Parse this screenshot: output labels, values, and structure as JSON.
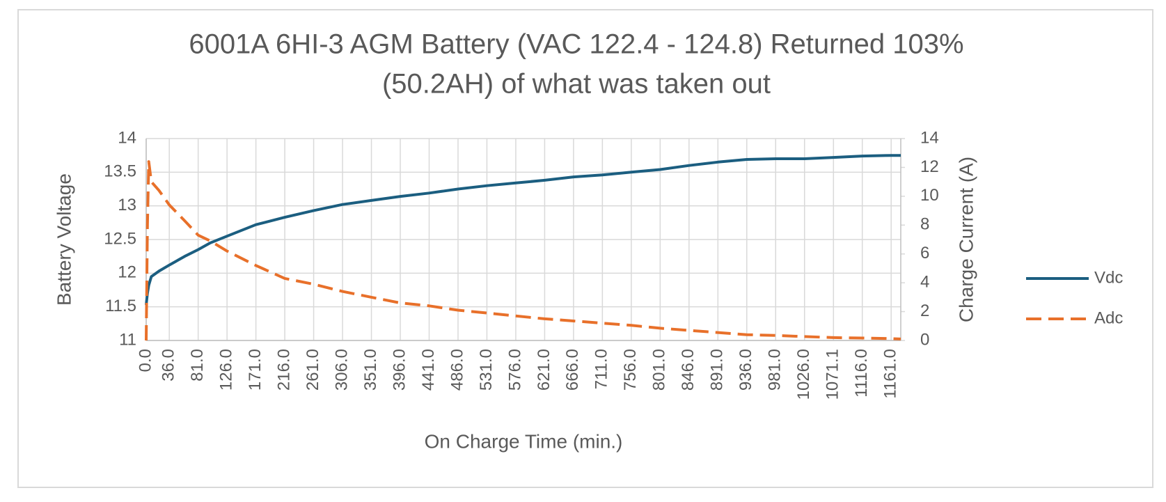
{
  "chart_data": {
    "type": "line",
    "title": "6001A 6HI-3 AGM Battery (VAC 122.4 - 124.8) Returned 103%",
    "subtitle": "(50.2AH) of what was taken out",
    "x_label": "On Charge Time (min.)",
    "y_label": "Battery Voltage",
    "y2_label": "Charge Current (A)",
    "x": [
      0,
      2,
      4,
      8,
      20,
      36,
      60,
      81,
      100,
      126,
      171,
      216,
      261,
      306,
      351,
      396,
      441,
      486,
      531,
      576,
      621,
      666,
      711,
      756,
      801,
      846,
      891,
      936,
      981,
      1026,
      1071.1,
      1116,
      1161,
      1176
    ],
    "series": [
      {
        "name": "Vdc",
        "color": "#1b5e80",
        "dash": false,
        "values": [
          11.53,
          11.7,
          11.82,
          11.95,
          12.03,
          12.12,
          12.25,
          12.35,
          12.45,
          12.55,
          12.72,
          12.83,
          12.93,
          13.02,
          13.08,
          13.14,
          13.19,
          13.25,
          13.3,
          13.34,
          13.38,
          13.43,
          13.46,
          13.5,
          13.54,
          13.6,
          13.65,
          13.69,
          13.7,
          13.7,
          13.72,
          13.74,
          13.75,
          13.75
        ]
      },
      {
        "name": "Adc",
        "color": "#e8702a",
        "dash": true,
        "axis": "y2",
        "values": [
          0,
          8,
          12.4,
          11,
          10.4,
          9.4,
          8.3,
          7.3,
          6.9,
          6.2,
          5.2,
          4.3,
          3.9,
          3.4,
          3.0,
          2.6,
          2.4,
          2.1,
          1.9,
          1.7,
          1.5,
          1.35,
          1.2,
          1.05,
          0.85,
          0.7,
          0.55,
          0.4,
          0.35,
          0.27,
          0.2,
          0.17,
          0.13,
          0.1
        ]
      }
    ],
    "xlim": [
      0,
      1176
    ],
    "xticks": [
      {
        "value": 0,
        "label": "0.0"
      },
      {
        "value": 36,
        "label": "36.0"
      },
      {
        "value": 81,
        "label": "81.0"
      },
      {
        "value": 126,
        "label": "126.0"
      },
      {
        "value": 171,
        "label": "171.0"
      },
      {
        "value": 216,
        "label": "216.0"
      },
      {
        "value": 261,
        "label": "261.0"
      },
      {
        "value": 306,
        "label": "306.0"
      },
      {
        "value": 351,
        "label": "351.0"
      },
      {
        "value": 396,
        "label": "396.0"
      },
      {
        "value": 441,
        "label": "441.0"
      },
      {
        "value": 486,
        "label": "486.0"
      },
      {
        "value": 531,
        "label": "531.0"
      },
      {
        "value": 576,
        "label": "576.0"
      },
      {
        "value": 621,
        "label": "621.0"
      },
      {
        "value": 666,
        "label": "666.0"
      },
      {
        "value": 711,
        "label": "711.0"
      },
      {
        "value": 756,
        "label": "756.0"
      },
      {
        "value": 801,
        "label": "801.0"
      },
      {
        "value": 846,
        "label": "846.0"
      },
      {
        "value": 891,
        "label": "891.0"
      },
      {
        "value": 936,
        "label": "936.0"
      },
      {
        "value": 981,
        "label": "981.0"
      },
      {
        "value": 1026,
        "label": "1026.0"
      },
      {
        "value": 1071.1,
        "label": "1071.1"
      },
      {
        "value": 1116,
        "label": "1116.0"
      },
      {
        "value": 1161,
        "label": "1161.0"
      }
    ],
    "ylim": [
      11,
      14
    ],
    "yticks": [
      11,
      11.5,
      12,
      12.5,
      13,
      13.5,
      14
    ],
    "y2lim": [
      0,
      14
    ],
    "y2ticks": [
      0,
      2,
      4,
      6,
      8,
      10,
      12,
      14
    ],
    "grid": true,
    "legend": "right"
  }
}
